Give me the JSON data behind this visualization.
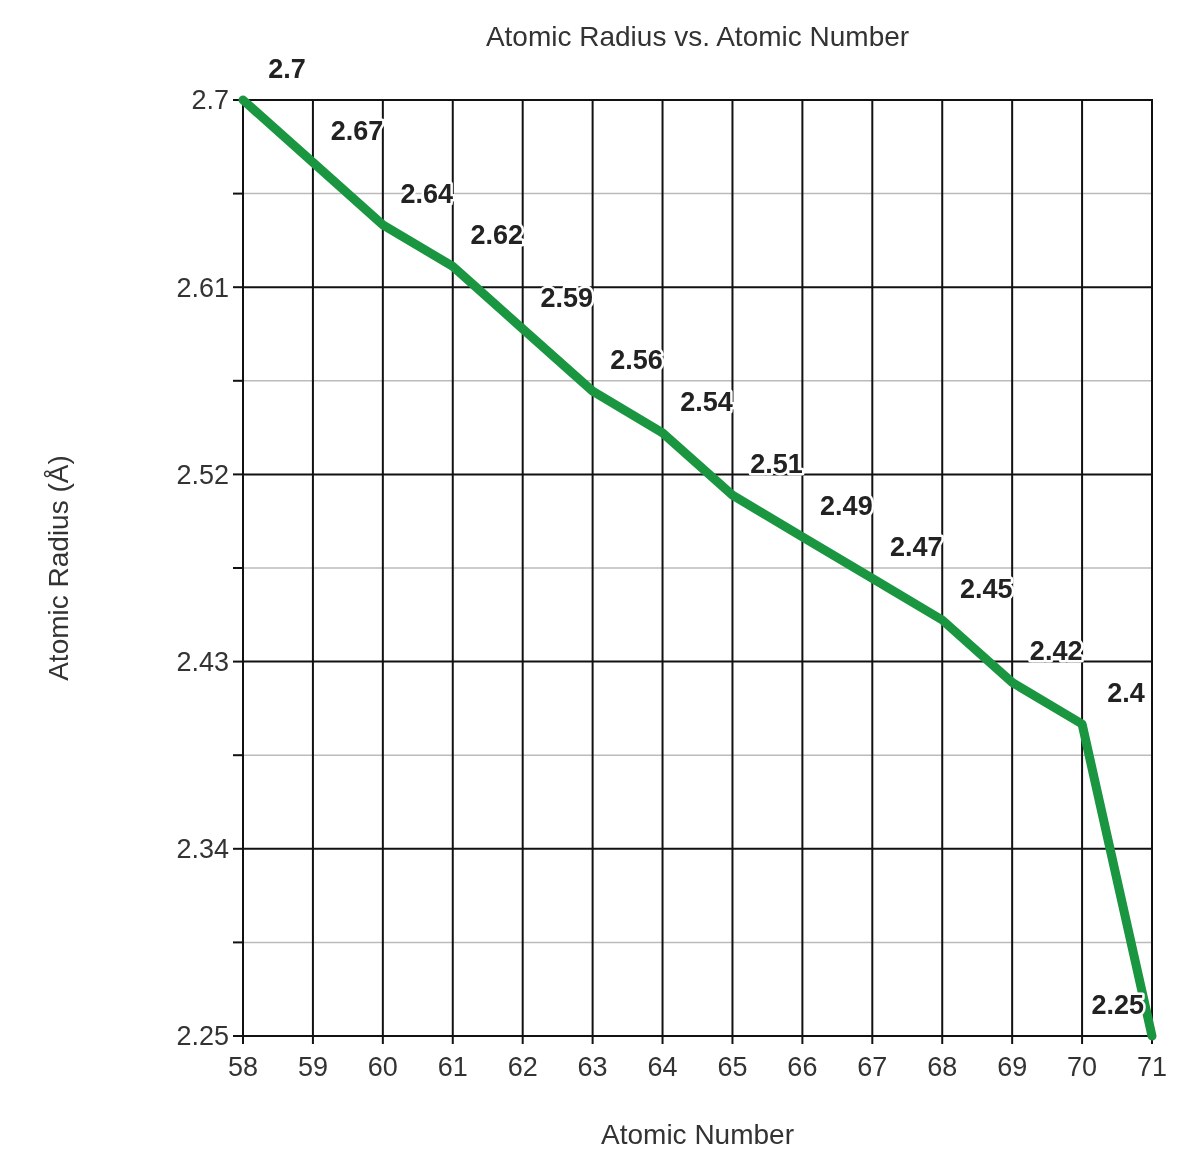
{
  "chart_data": {
    "type": "line",
    "title": "Atomic Radius vs. Atomic Number",
    "xlabel": "Atomic Number",
    "ylabel": "Atomic Radius (Å)",
    "x": [
      58,
      59,
      60,
      61,
      62,
      63,
      64,
      65,
      66,
      67,
      68,
      69,
      70,
      71
    ],
    "series": [
      {
        "color": "#1a9641",
        "values": [
          2.7,
          2.67,
          2.64,
          2.62,
          2.59,
          2.56,
          2.54,
          2.51,
          2.49,
          2.47,
          2.45,
          2.42,
          2.4,
          2.25
        ]
      }
    ],
    "xlim": [
      58,
      71
    ],
    "xticks": [
      58,
      59,
      60,
      61,
      62,
      63,
      64,
      65,
      66,
      67,
      68,
      69,
      70,
      71
    ],
    "ylim": [
      2.25,
      2.7
    ],
    "yticks": [
      2.25,
      {
        "value": 2.295,
        "label": null
      },
      2.34,
      {
        "value": 2.385,
        "label": null
      },
      2.43,
      {
        "value": 2.475,
        "label": null
      },
      2.52,
      {
        "value": 2.565,
        "label": null
      },
      2.61,
      {
        "value": 2.655,
        "label": null
      },
      2.7
    ],
    "grid": true,
    "marker": "none",
    "line_style": "solid",
    "data_labels": true
  }
}
